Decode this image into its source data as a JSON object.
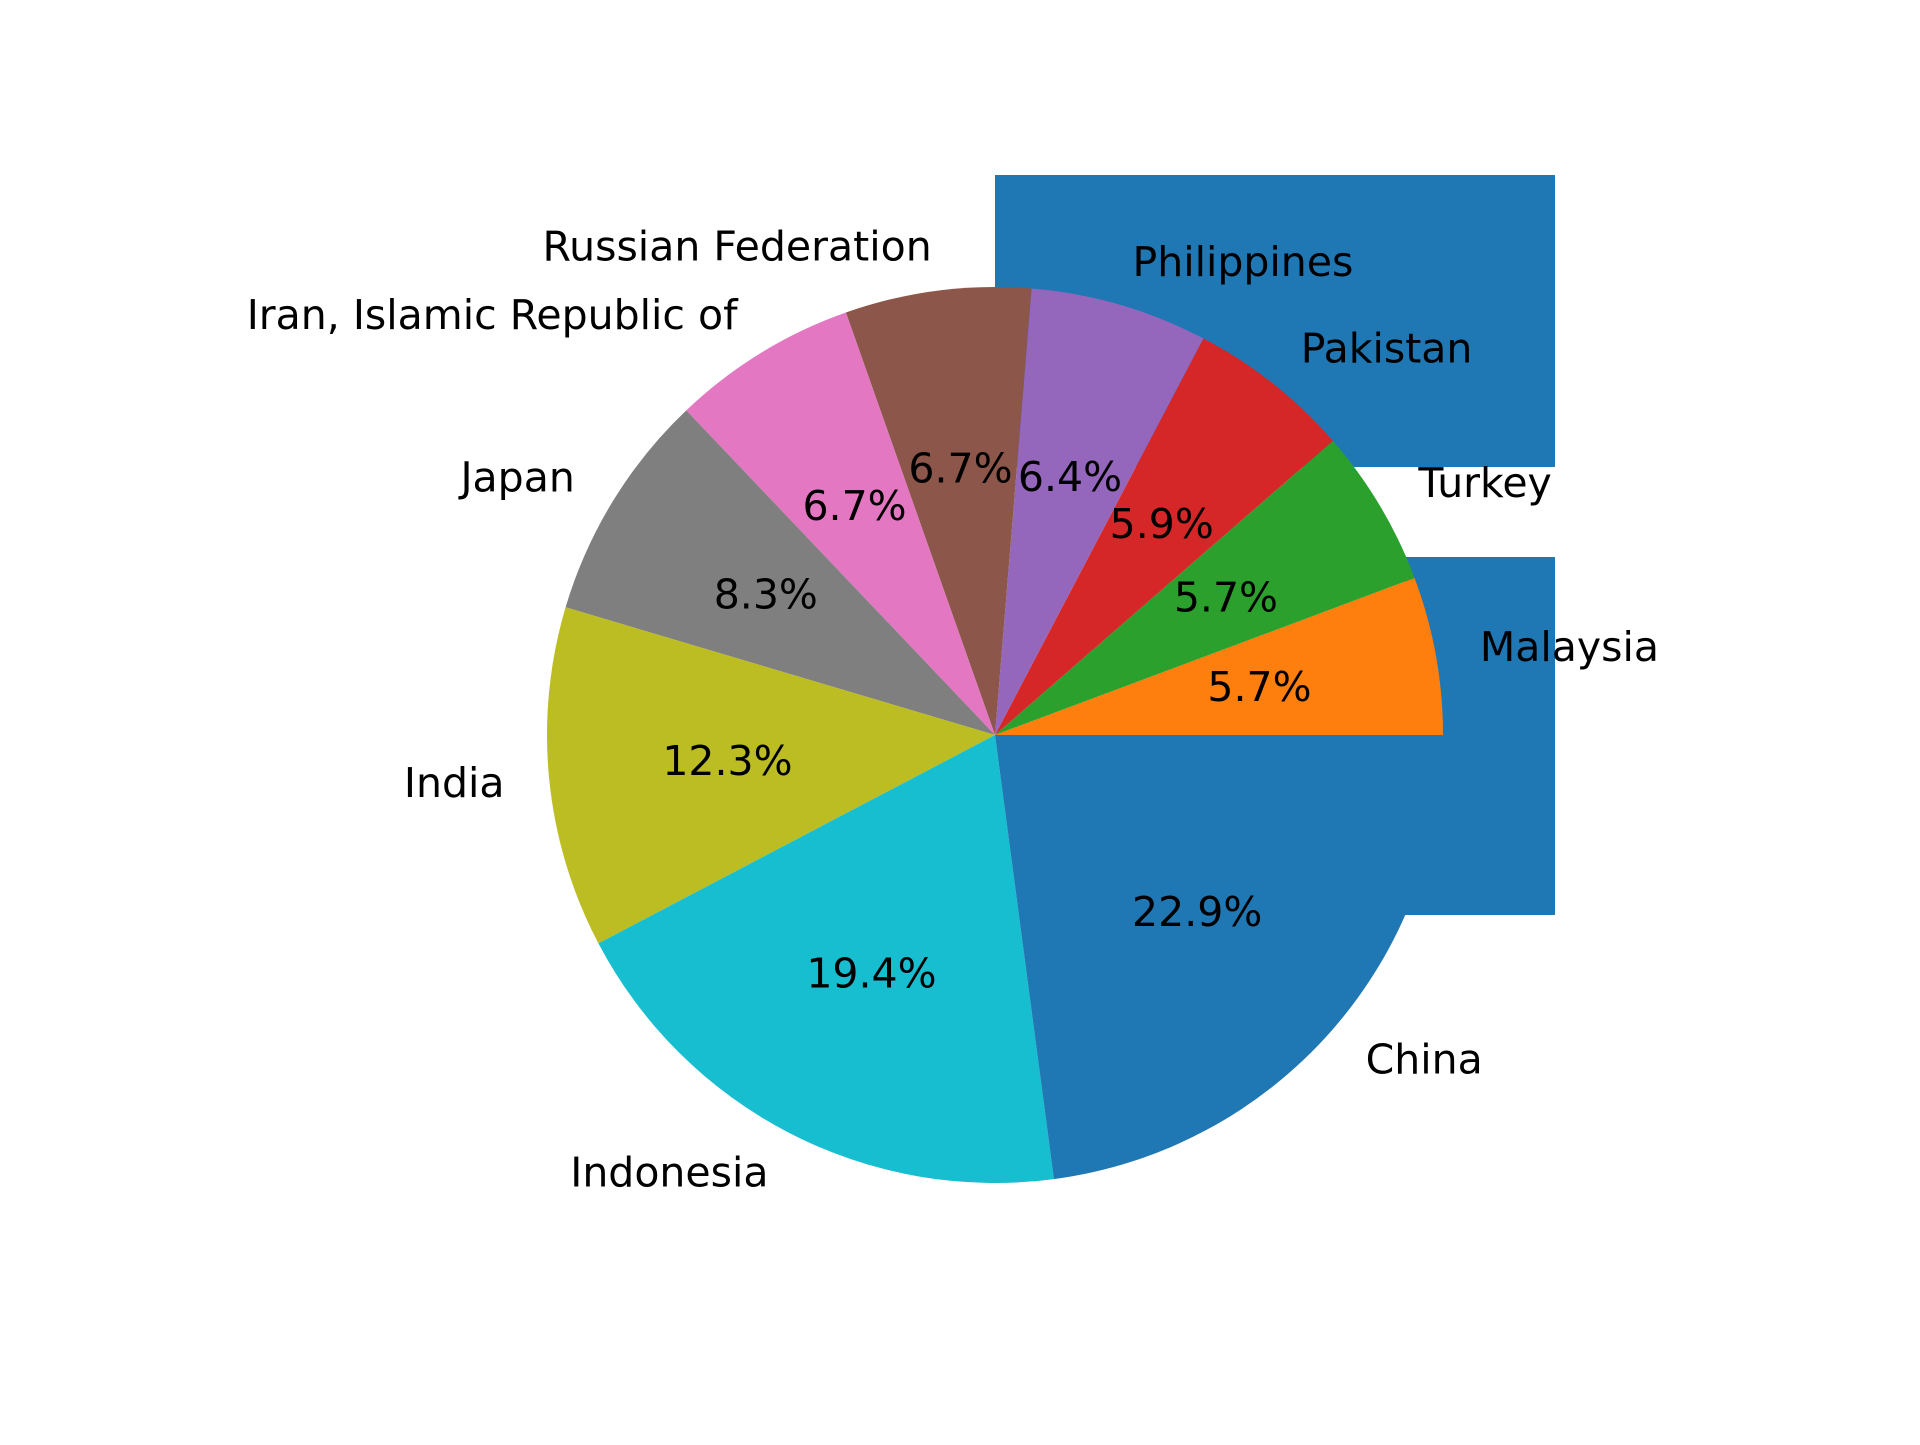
{
  "chart_data": {
    "type": "pie",
    "title": "",
    "start_angle_deg": 0,
    "direction": "counterclockwise",
    "slices": [
      {
        "label": "Malaysia",
        "value": 5.7,
        "pct_label": "5.7%",
        "color": "#ff7f0e"
      },
      {
        "label": "Turkey",
        "value": 5.7,
        "pct_label": "5.7%",
        "color": "#2ca02c"
      },
      {
        "label": "Pakistan",
        "value": 5.9,
        "pct_label": "5.9%",
        "color": "#d62728"
      },
      {
        "label": "Philippines",
        "value": 6.4,
        "pct_label": "6.4%",
        "color": "#9467bd"
      },
      {
        "label": "Russian Federation",
        "value": 6.7,
        "pct_label": "6.7%",
        "color": "#8c564b"
      },
      {
        "label": "Iran, Islamic Republic of",
        "value": 6.7,
        "pct_label": "6.7%",
        "color": "#e377c2"
      },
      {
        "label": "Japan",
        "value": 8.3,
        "pct_label": "8.3%",
        "color": "#7f7f7f"
      },
      {
        "label": "India",
        "value": 12.3,
        "pct_label": "12.3%",
        "color": "#bcbd22"
      },
      {
        "label": "Indonesia",
        "value": 19.4,
        "pct_label": "19.4%",
        "color": "#17becf"
      },
      {
        "label": "China",
        "value": 22.9,
        "pct_label": "22.9%",
        "color": "#1f77b4"
      }
    ],
    "background_rect_color": "#1f77b4"
  }
}
